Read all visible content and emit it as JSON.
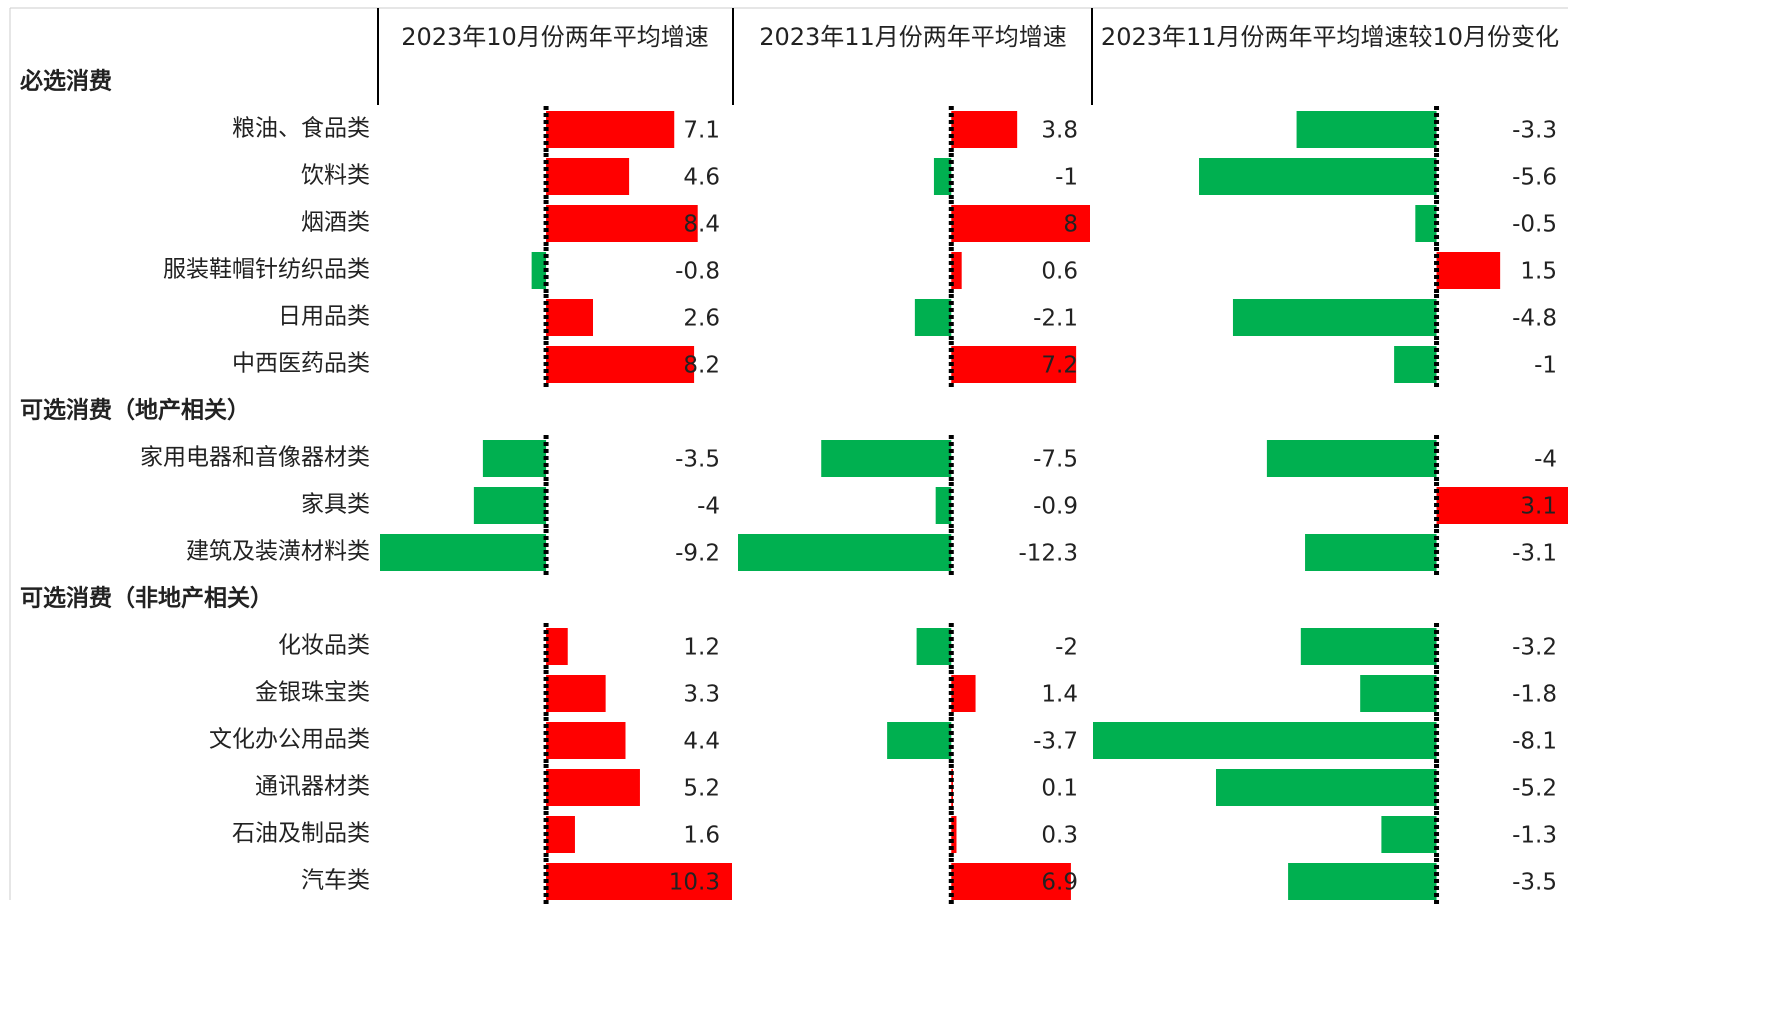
{
  "headers": [
    "2023年10月份两年平均增速",
    "2023年11月份两年平均增速",
    "2023年11月份两年平均增速较10月份变化"
  ],
  "groups": [
    {
      "name": "必选消费",
      "rows": [
        {
          "label": "粮油、食品类",
          "values": [
            7.1,
            3.8,
            -3.3
          ]
        },
        {
          "label": "饮料类",
          "values": [
            4.6,
            -1.0,
            -5.6
          ]
        },
        {
          "label": "烟酒类",
          "values": [
            8.4,
            8.0,
            -0.5
          ]
        },
        {
          "label": "服装鞋帽针纺织品类",
          "values": [
            -0.8,
            0.6,
            1.5
          ]
        },
        {
          "label": "日用品类",
          "values": [
            2.6,
            -2.1,
            -4.8
          ]
        },
        {
          "label": "中西医药品类",
          "values": [
            8.2,
            7.2,
            -1.0
          ]
        }
      ]
    },
    {
      "name": "可选消费（地产相关）",
      "rows": [
        {
          "label": "家用电器和音像器材类",
          "values": [
            -3.5,
            -7.5,
            -4.0
          ]
        },
        {
          "label": "家具类",
          "values": [
            -4.0,
            -0.9,
            3.1
          ]
        },
        {
          "label": "建筑及装潢材料类",
          "values": [
            -9.2,
            -12.3,
            -3.1
          ]
        }
      ]
    },
    {
      "name": "可选消费（非地产相关）",
      "rows": [
        {
          "label": "化妆品类",
          "values": [
            1.2,
            -2.0,
            -3.2
          ]
        },
        {
          "label": "金银珠宝类",
          "values": [
            3.3,
            1.4,
            -1.8
          ]
        },
        {
          "label": "文化办公用品类",
          "values": [
            4.4,
            -3.7,
            -8.1
          ]
        },
        {
          "label": "通讯器材类",
          "values": [
            5.2,
            0.1,
            -5.2
          ]
        },
        {
          "label": "石油及制品类",
          "values": [
            1.6,
            0.3,
            -1.3
          ]
        },
        {
          "label": "汽车类",
          "values": [
            10.3,
            6.9,
            -3.5
          ]
        }
      ]
    }
  ],
  "colors": {
    "positive": "#ff0000",
    "negative": "#00b050"
  }
}
